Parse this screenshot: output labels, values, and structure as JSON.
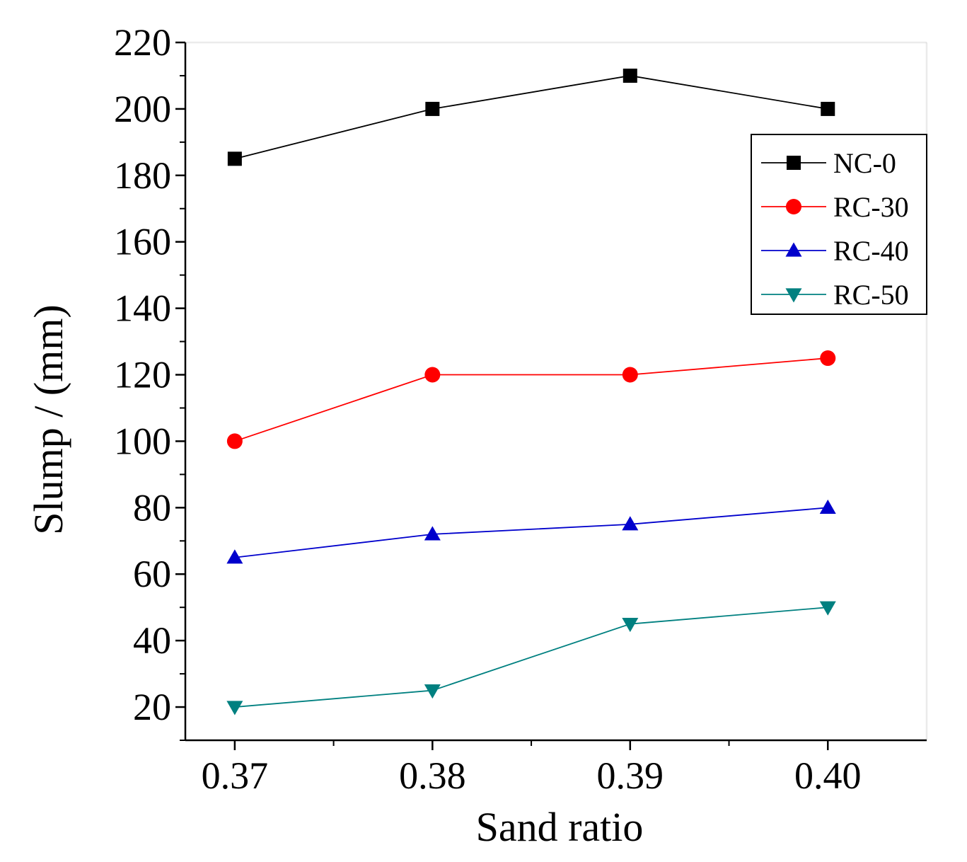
{
  "chart_data": {
    "type": "line",
    "xlabel": "Sand ratio",
    "ylabel": "Slump / (mm)",
    "x": [
      0.37,
      0.38,
      0.39,
      0.4
    ],
    "x_tick_labels": [
      "0.37",
      "0.38",
      "0.39",
      "0.40"
    ],
    "xlim": [
      0.3675,
      0.405
    ],
    "ylim": [
      10,
      220
    ],
    "y_ticks": [
      20,
      40,
      60,
      80,
      100,
      120,
      140,
      160,
      180,
      200,
      220
    ],
    "legend_position": "top-right",
    "series": [
      {
        "name": "NC-0",
        "marker": "square",
        "color": "#000000",
        "values": [
          185,
          200,
          210,
          200
        ]
      },
      {
        "name": "RC-30",
        "marker": "circle",
        "color": "#ff0000",
        "values": [
          100,
          120,
          120,
          125
        ]
      },
      {
        "name": "RC-40",
        "marker": "triangle-up",
        "color": "#0000cc",
        "values": [
          65,
          72,
          75,
          80
        ]
      },
      {
        "name": "RC-50",
        "marker": "triangle-down",
        "color": "#008080",
        "values": [
          20,
          25,
          45,
          50
        ]
      }
    ]
  }
}
